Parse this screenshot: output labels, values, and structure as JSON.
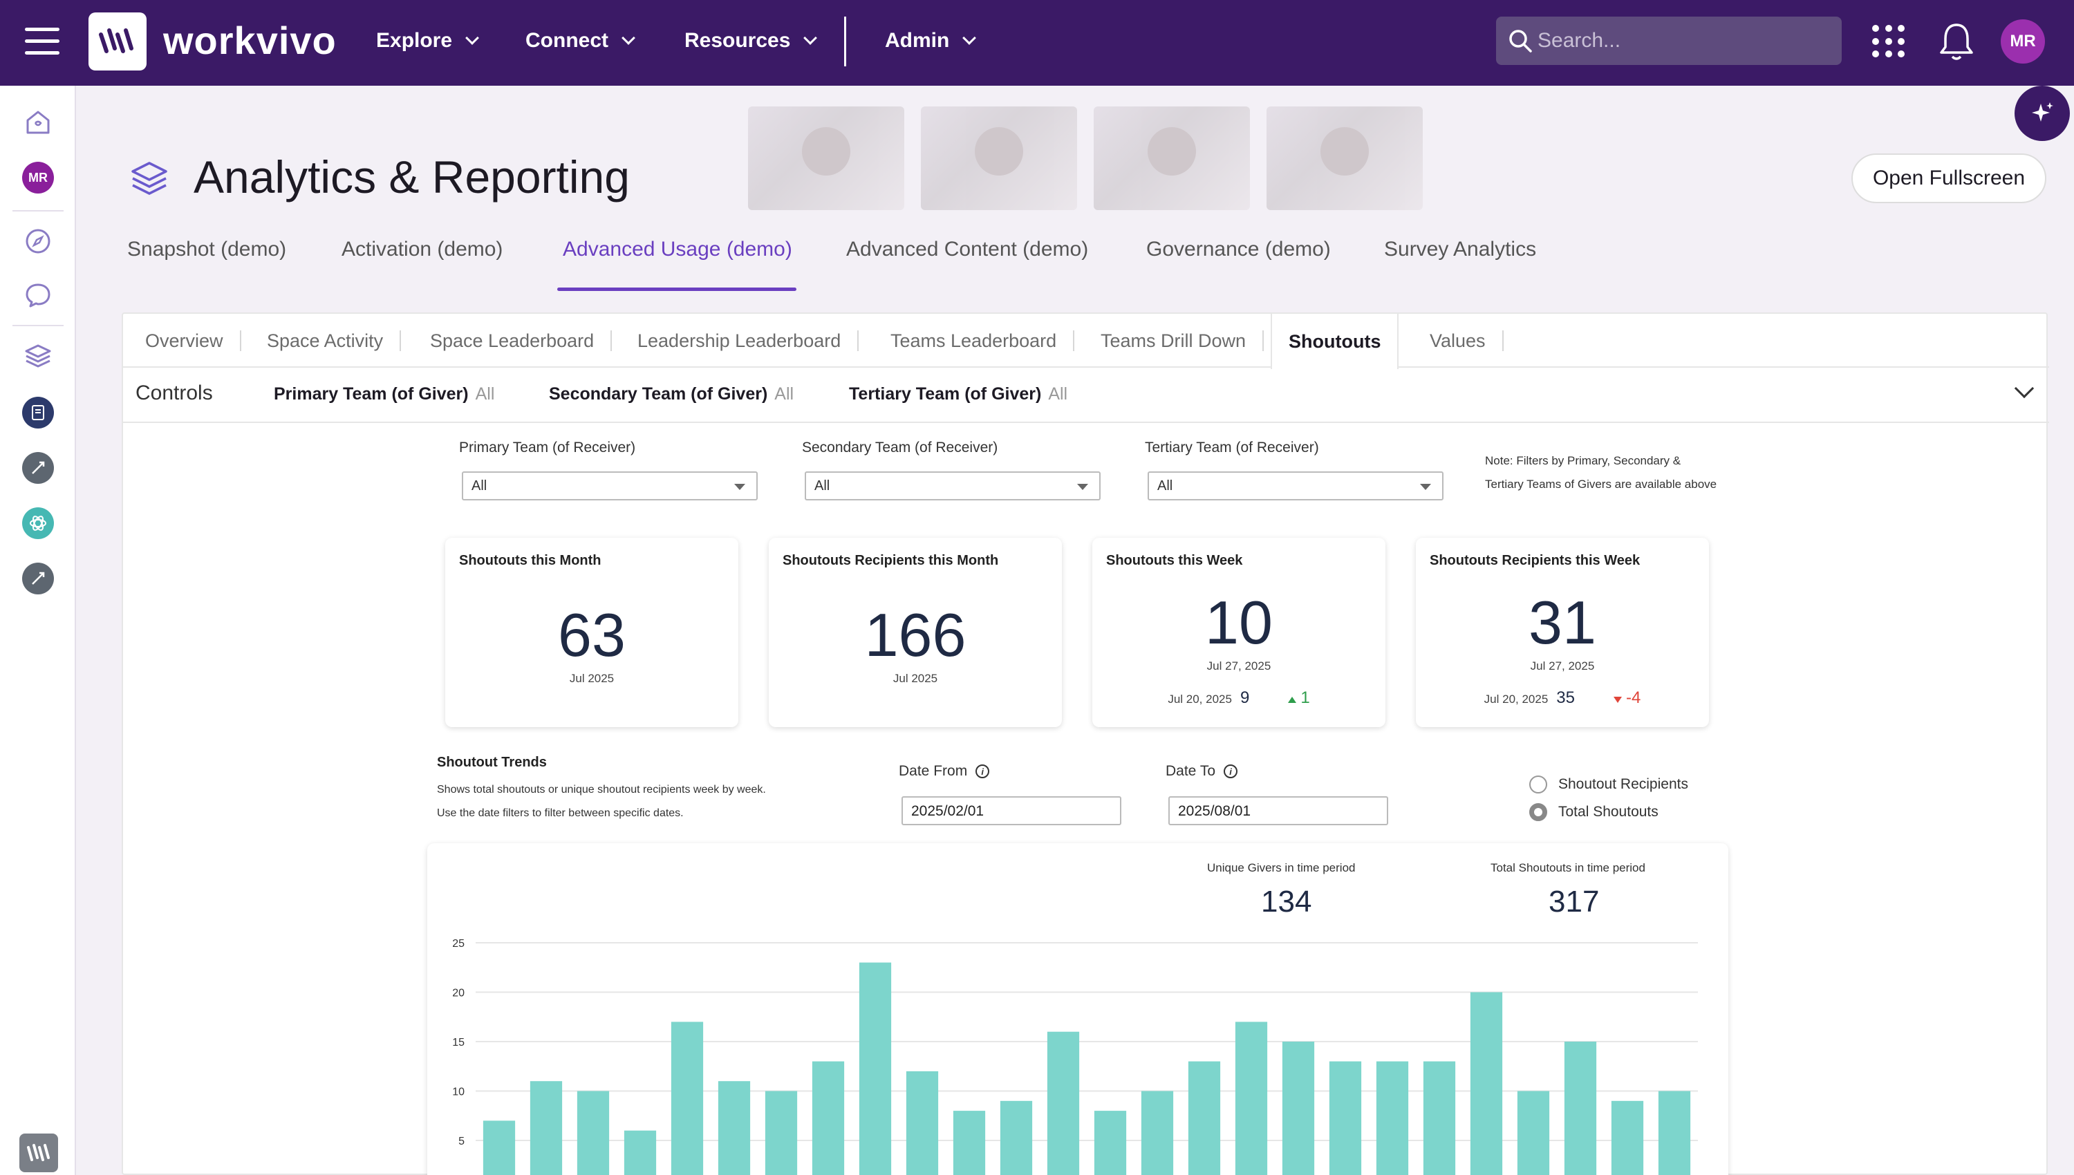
{
  "topbar": {
    "brand": "workvivo",
    "nav": [
      "Explore",
      "Connect",
      "Resources",
      "Admin"
    ],
    "search_placeholder": "Search...",
    "user_initials": "MR"
  },
  "sidebar": {
    "user_initials": "MR"
  },
  "page": {
    "title": "Analytics & Reporting",
    "open_fullscreen": "Open Fullscreen"
  },
  "tabs": [
    "Snapshot (demo)",
    "Activation (demo)",
    "Advanced Usage (demo)",
    "Advanced Content (demo)",
    "Governance (demo)",
    "Survey Analytics"
  ],
  "active_tab": "Advanced Usage (demo)",
  "subtabs": [
    "Overview",
    "Space Activity",
    "Space Leaderboard",
    "Leadership Leaderboard",
    "Teams Leaderboard",
    "Teams Drill Down",
    "Shoutouts",
    "Values"
  ],
  "active_subtab": "Shoutouts",
  "controls": {
    "label": "Controls",
    "filters": [
      {
        "name": "Primary Team (of Giver)",
        "value": "All"
      },
      {
        "name": "Secondary Team (of Giver)",
        "value": "All"
      },
      {
        "name": "Tertiary Team (of Giver)",
        "value": "All"
      }
    ]
  },
  "receiver_filters": [
    {
      "label": "Primary Team (of Receiver)",
      "value": "All"
    },
    {
      "label": "Secondary Team (of Receiver)",
      "value": "All"
    },
    {
      "label": "Tertiary Team (of Receiver)",
      "value": "All"
    }
  ],
  "note": {
    "line1": "Note: Filters by Primary, Secondary &",
    "line2": "Tertiary Teams of Givers are available above"
  },
  "cards": [
    {
      "title": "Shoutouts this Month",
      "value": "63",
      "date": "Jul 2025"
    },
    {
      "title": "Shoutouts Recipients this Month",
      "value": "166",
      "date": "Jul 2025"
    },
    {
      "title": "Shoutouts this Week",
      "value": "10",
      "date": "Jul 27, 2025",
      "prev_date": "Jul 20, 2025",
      "prev_value": "9",
      "change": "1"
    },
    {
      "title": "Shoutouts Recipients this Week",
      "value": "31",
      "date": "Jul 27, 2025",
      "prev_date": "Jul 20, 2025",
      "prev_value": "35",
      "change": "-4"
    }
  ],
  "trends": {
    "title": "Shoutout Trends",
    "desc1": "Shows total shoutouts or unique shoutout recipients week by week.",
    "desc2": "Use the date filters to filter between specific dates.",
    "date_from_label": "Date From",
    "date_from": "2025/02/01",
    "date_to_label": "Date To",
    "date_to": "2025/08/01",
    "radio_options": [
      "Shoutout Recipients",
      "Total Shoutouts"
    ],
    "radio_selected": "Total Shoutouts",
    "kpi": [
      {
        "label": "Unique Givers in time period",
        "value": "134"
      },
      {
        "label": "Total Shoutouts in time period",
        "value": "317"
      }
    ]
  },
  "colors": {
    "topbar": "#3b1a66",
    "accent": "#6a3fc0",
    "bar": "#7dd5cc"
  },
  "chart_data": {
    "type": "bar",
    "ylim": [
      0,
      25
    ],
    "yticks": [
      5,
      10,
      15,
      20,
      25
    ],
    "values": [
      7,
      11,
      10,
      6,
      17,
      11,
      10,
      13,
      23,
      12,
      8,
      9,
      16,
      8,
      10,
      13,
      17,
      15,
      13,
      13,
      13,
      20,
      10,
      15,
      9,
      10
    ]
  }
}
